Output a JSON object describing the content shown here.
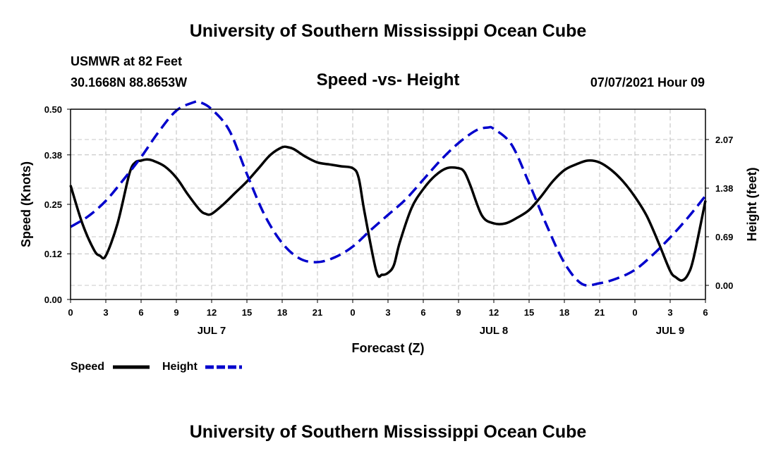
{
  "header": {
    "title": "University of Southern Mississippi Ocean Cube",
    "station": "USMWR at 82 Feet",
    "coords": "30.1668N  88.8653W",
    "subtitle": "Speed -vs- Height",
    "datetime": "07/07/2021 Hour 09"
  },
  "footer": {
    "title": "University of Southern Mississippi Ocean Cube"
  },
  "legend": {
    "speed_label": "Speed",
    "height_label": "Height"
  },
  "chart_data": {
    "type": "line",
    "title": "Speed -vs- Height",
    "xlabel": "Forecast (Z)",
    "ylabel_left": "Speed (Knots)",
    "ylabel_right": "Height (feet)",
    "xlim": [
      0,
      54
    ],
    "ylim_left": [
      0,
      0.5
    ],
    "ylim_right": [
      -0.2,
      2.5
    ],
    "grid": true,
    "legend_position": "bottom-left",
    "x_ticks": [
      0,
      3,
      6,
      9,
      12,
      15,
      18,
      21,
      24,
      27,
      30,
      33,
      36,
      39,
      42,
      45,
      48,
      51,
      54
    ],
    "x_tick_labels": [
      "0",
      "3",
      "6",
      "9",
      "12",
      "15",
      "18",
      "21",
      "0",
      "3",
      "6",
      "9",
      "12",
      "15",
      "18",
      "21",
      "0",
      "3",
      "6"
    ],
    "day_labels": [
      {
        "x": 12,
        "label": "JUL 7"
      },
      {
        "x": 36,
        "label": "JUL 8"
      },
      {
        "x": 51,
        "label": "JUL 9"
      }
    ],
    "y_left_ticks": [
      0.0,
      0.12,
      0.25,
      0.38,
      0.5
    ],
    "y_left_tick_labels": [
      "0.00",
      "0.12",
      "0.25",
      "0.38",
      "0.50"
    ],
    "y_right_ticks": [
      0.0,
      0.69,
      1.38,
      2.07
    ],
    "y_right_tick_labels": [
      "0.00",
      "0.69",
      "1.38",
      "2.07"
    ],
    "series": [
      {
        "name": "Speed",
        "axis": "left",
        "color": "#000000",
        "style": "solid",
        "x": [
          0,
          1,
          2,
          2.5,
          3,
          4,
          5,
          5.5,
          6,
          6.5,
          7,
          8,
          9,
          10,
          11,
          11.5,
          12,
          13,
          14,
          15,
          16,
          17,
          18,
          18.5,
          19,
          20,
          21,
          22,
          23,
          24,
          24.5,
          25,
          26,
          26.5,
          27,
          27.5,
          28,
          29,
          30,
          31,
          32,
          33,
          33.5,
          34,
          35,
          36,
          37,
          38,
          39,
          40,
          41,
          42,
          43,
          44,
          45,
          46,
          47,
          48,
          49,
          50,
          51,
          51.5,
          52,
          52.5,
          53,
          54
        ],
        "values": [
          0.3,
          0.2,
          0.13,
          0.115,
          0.115,
          0.2,
          0.33,
          0.36,
          0.365,
          0.368,
          0.365,
          0.35,
          0.32,
          0.275,
          0.235,
          0.225,
          0.225,
          0.25,
          0.28,
          0.31,
          0.345,
          0.38,
          0.4,
          0.4,
          0.395,
          0.375,
          0.36,
          0.355,
          0.35,
          0.345,
          0.32,
          0.23,
          0.075,
          0.065,
          0.07,
          0.09,
          0.15,
          0.24,
          0.29,
          0.325,
          0.345,
          0.345,
          0.335,
          0.3,
          0.22,
          0.2,
          0.2,
          0.215,
          0.235,
          0.27,
          0.31,
          0.34,
          0.355,
          0.365,
          0.36,
          0.34,
          0.31,
          0.27,
          0.22,
          0.15,
          0.075,
          0.058,
          0.05,
          0.065,
          0.11,
          0.26
        ]
      },
      {
        "name": "Height",
        "axis": "right",
        "color": "#0000cc",
        "style": "dashed",
        "x": [
          0,
          1.5,
          3,
          4.5,
          6,
          7.5,
          9,
          10.5,
          11,
          12,
          13.5,
          15,
          16.5,
          18,
          19.5,
          21,
          22.5,
          24,
          25.5,
          27,
          28.5,
          30,
          31.5,
          33,
          34.5,
          35.5,
          36,
          37.5,
          39,
          40.5,
          42,
          43.5,
          45,
          46.5,
          48,
          49.5,
          51,
          52.5,
          54
        ],
        "values": [
          0.83,
          0.98,
          1.2,
          1.5,
          1.82,
          2.18,
          2.48,
          2.6,
          2.6,
          2.5,
          2.2,
          1.58,
          1.0,
          0.6,
          0.38,
          0.33,
          0.4,
          0.55,
          0.78,
          1.0,
          1.22,
          1.5,
          1.78,
          2.02,
          2.2,
          2.24,
          2.22,
          2.0,
          1.45,
          0.85,
          0.32,
          0.02,
          0.03,
          0.1,
          0.22,
          0.43,
          0.68,
          0.96,
          1.27
        ]
      }
    ]
  }
}
